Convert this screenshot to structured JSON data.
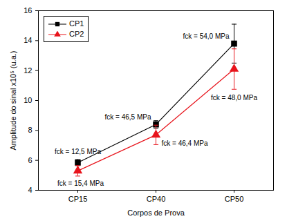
{
  "chart_data": {
    "type": "line",
    "x_label": "Corpos de Prova",
    "y_label": "Amplitude do sinal x10⁵ (u.a.)",
    "categories": [
      "CP15",
      "CP40",
      "CP50"
    ],
    "series": [
      {
        "name": "CP1",
        "color": "#000000",
        "marker": "square",
        "values": [
          5.85,
          8.4,
          13.8
        ],
        "errors": [
          0.2,
          0.25,
          1.3
        ],
        "annotations": [
          "fck = 12,5 MPa",
          "fck = 46,5 MPa",
          "fck = 54,0 MPa"
        ]
      },
      {
        "name": "CP2",
        "color": "#e8141c",
        "marker": "triangle",
        "values": [
          5.3,
          7.7,
          12.1
        ],
        "errors": [
          0.35,
          0.65,
          1.35
        ],
        "annotations": [
          "fck = 15,4 MPa",
          "fck = 46,4 MPa",
          "fck = 48,0 MPa"
        ]
      }
    ],
    "ylim": [
      4,
      16
    ],
    "yticks": [
      4,
      6,
      8,
      10,
      12,
      14,
      16
    ],
    "grid": false,
    "legend": "upper left"
  }
}
